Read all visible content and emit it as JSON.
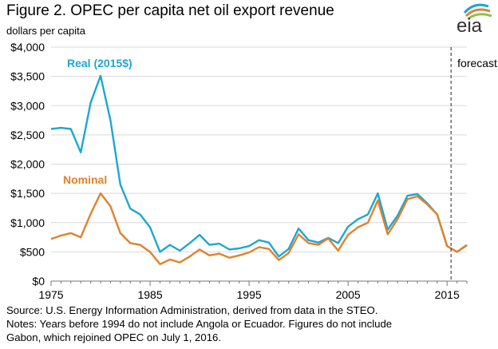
{
  "title": "Figure 2. OPEC per capita net oil export revenue",
  "logo_text": "eia",
  "chart_data": {
    "type": "line",
    "title": "Figure 2. OPEC per capita net oil export revenue",
    "ylabel": "dollars per capita",
    "xlabel": "",
    "x": [
      1975,
      1976,
      1977,
      1978,
      1979,
      1980,
      1981,
      1982,
      1983,
      1984,
      1985,
      1986,
      1987,
      1988,
      1989,
      1990,
      1991,
      1992,
      1993,
      1994,
      1995,
      1996,
      1997,
      1998,
      1999,
      2000,
      2001,
      2002,
      2003,
      2004,
      2005,
      2006,
      2007,
      2008,
      2009,
      2010,
      2011,
      2012,
      2013,
      2014,
      2015,
      2016,
      2017
    ],
    "xlim": [
      1975,
      2017
    ],
    "xticks": [
      1975,
      1985,
      1995,
      2005,
      2015
    ],
    "xtick_labels": [
      "1975",
      "1985",
      "1995",
      "2005",
      "2015"
    ],
    "ylim": [
      0,
      4000
    ],
    "yticks": [
      0,
      500,
      1000,
      1500,
      2000,
      2500,
      3000,
      3500,
      4000
    ],
    "ytick_labels": [
      "$0",
      "$500",
      "$1,000",
      "$1,500",
      "$2,000",
      "$2,500",
      "$3,000",
      "$3,500",
      "$4,000"
    ],
    "series": [
      {
        "name": "Real (2015$)",
        "color": "#1ea6d4",
        "values": [
          2600,
          2620,
          2600,
          2200,
          3050,
          3510,
          2750,
          1650,
          1240,
          1140,
          920,
          500,
          620,
          520,
          650,
          790,
          620,
          640,
          540,
          560,
          600,
          700,
          660,
          420,
          550,
          900,
          700,
          660,
          740,
          650,
          930,
          1060,
          1140,
          1500,
          880,
          1120,
          1460,
          1490,
          1330,
          1140,
          600,
          500,
          610
        ]
      },
      {
        "name": "Nominal",
        "color": "#e0822b",
        "values": [
          720,
          780,
          820,
          750,
          1150,
          1500,
          1280,
          820,
          650,
          620,
          500,
          290,
          370,
          320,
          420,
          540,
          440,
          470,
          400,
          440,
          490,
          580,
          550,
          360,
          480,
          800,
          650,
          620,
          730,
          520,
          790,
          920,
          1000,
          1380,
          800,
          1060,
          1400,
          1450,
          1310,
          1140,
          600,
          500,
          620
        ]
      }
    ],
    "annotations": [
      "Real (2015$)",
      "Nominal",
      "forecast"
    ],
    "forecast_start": 2015.4,
    "grid": "horizontal",
    "legend": "inline labels"
  },
  "notes": {
    "source": "Source: U.S. Energy Information Administration, derived from data in the STEO.",
    "line1": "Notes: Years before 1994 do not include Angola or Ecuador. Figures do not include",
    "line2": "Gabon, which rejoined OPEC on July 1, 2016."
  }
}
